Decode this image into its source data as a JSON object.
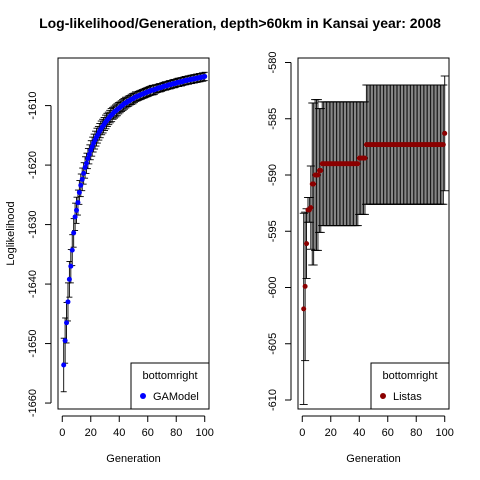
{
  "title": "Log-likelihood/Generation, depth>60km in Kansai year: 2008",
  "chart_data": [
    {
      "type": "scatter",
      "xlabel": "Generation",
      "ylabel": "Loglikelihood",
      "xlim": [
        -3,
        103
      ],
      "ylim": [
        -1661,
        -1602
      ],
      "xticks": [
        0,
        20,
        40,
        60,
        80,
        100
      ],
      "yticks": [
        -1660,
        -1650,
        -1640,
        -1630,
        -1620,
        -1610
      ],
      "ytick_labels": [
        "-1660",
        "-1650",
        "-1640",
        "-1630",
        "-1620",
        "-1610"
      ],
      "legend": {
        "title": "bottomright",
        "position": "bottom-right"
      },
      "series": [
        {
          "name": "GAModel",
          "color": "#0000ff",
          "error_bars": true,
          "x": [
            1,
            2,
            3,
            4,
            5,
            6,
            7,
            8,
            9,
            10,
            11,
            12,
            13,
            14,
            15,
            16,
            17,
            18,
            19,
            20,
            21,
            22,
            23,
            24,
            25,
            26,
            27,
            28,
            29,
            30,
            31,
            32,
            33,
            34,
            35,
            36,
            37,
            38,
            39,
            40,
            41,
            42,
            43,
            44,
            45,
            46,
            47,
            48,
            49,
            50,
            51,
            52,
            53,
            54,
            55,
            56,
            57,
            58,
            59,
            60,
            61,
            62,
            63,
            64,
            65,
            66,
            67,
            68,
            69,
            70,
            71,
            72,
            73,
            74,
            75,
            76,
            77,
            78,
            79,
            80,
            81,
            82,
            83,
            84,
            85,
            86,
            87,
            88,
            89,
            90,
            91,
            92,
            93,
            94,
            95,
            96,
            97,
            98,
            99,
            100
          ],
          "y": [
            -1653.6,
            -1649.5,
            -1646.5,
            -1643.0,
            -1639.2,
            -1637.0,
            -1634.3,
            -1631.4,
            -1628.7,
            -1627.6,
            -1626.3,
            -1624.6,
            -1623.4,
            -1622.4,
            -1621.4,
            -1620.4,
            -1619.7,
            -1618.9,
            -1618.2,
            -1617.5,
            -1616.9,
            -1616.3,
            -1615.8,
            -1615.3,
            -1614.9,
            -1614.4,
            -1614.0,
            -1613.6,
            -1613.3,
            -1612.9,
            -1612.6,
            -1612.3,
            -1612.0,
            -1611.7,
            -1611.5,
            -1611.2,
            -1611.0,
            -1610.8,
            -1610.6,
            -1610.4,
            -1610.2,
            -1610.0,
            -1609.8,
            -1609.6,
            -1609.5,
            -1609.3,
            -1609.2,
            -1609.0,
            -1608.9,
            -1608.8,
            -1608.6,
            -1608.5,
            -1608.4,
            -1608.3,
            -1608.2,
            -1608.1,
            -1608.0,
            -1607.9,
            -1607.8,
            -1607.7,
            -1607.6,
            -1607.5,
            -1607.4,
            -1607.4,
            -1607.3,
            -1607.2,
            -1607.1,
            -1607.0,
            -1607.0,
            -1606.9,
            -1606.8,
            -1606.7,
            -1606.7,
            -1606.6,
            -1606.5,
            -1606.5,
            -1606.4,
            -1606.3,
            -1606.3,
            -1606.2,
            -1606.1,
            -1606.1,
            -1606.0,
            -1606.0,
            -1605.9,
            -1605.8,
            -1605.8,
            -1605.7,
            -1605.7,
            -1605.6,
            -1605.6,
            -1605.5,
            -1605.5,
            -1605.4,
            -1605.4,
            -1605.3,
            -1605.3,
            -1605.2,
            -1605.2,
            -1605.1
          ],
          "err": [
            4.5,
            3.8,
            3.4,
            3.2,
            3.0,
            2.8,
            2.6,
            2.4,
            2.3,
            2.2,
            2.1,
            2.0,
            1.9,
            1.9,
            1.8,
            1.8,
            1.7,
            1.7,
            1.6,
            1.6,
            1.6,
            1.5,
            1.5,
            1.5,
            1.4,
            1.4,
            1.4,
            1.3,
            1.3,
            1.3,
            1.3,
            1.2,
            1.2,
            1.2,
            1.2,
            1.1,
            1.1,
            1.1,
            1.1,
            1.0,
            1.0,
            1.0,
            1.0,
            1.0,
            0.9,
            0.9,
            0.9,
            0.9,
            0.9,
            0.9,
            0.9,
            0.8,
            0.8,
            0.8,
            0.8,
            0.8,
            0.8,
            0.8,
            0.8,
            0.8,
            0.8,
            0.8,
            0.8,
            0.8,
            0.8,
            0.7,
            0.7,
            0.7,
            0.7,
            0.7,
            0.7,
            0.7,
            0.7,
            0.7,
            0.7,
            0.7,
            0.7,
            0.7,
            0.7,
            0.7,
            0.7,
            0.7,
            0.7,
            0.7,
            0.7,
            0.7,
            0.7,
            0.7,
            0.7,
            0.7,
            0.7,
            0.7,
            0.7,
            0.7,
            0.7,
            0.7,
            0.7,
            0.7,
            0.7,
            0.7
          ]
        }
      ]
    },
    {
      "type": "scatter",
      "xlabel": "Generation",
      "ylabel": "",
      "xlim": [
        -3,
        103
      ],
      "ylim": [
        -610.8,
        -579.6
      ],
      "xticks": [
        0,
        20,
        40,
        60,
        80,
        100
      ],
      "yticks": [
        -610,
        -605,
        -600,
        -595,
        -590,
        -585,
        -580
      ],
      "ytick_labels": [
        "-610",
        "-605",
        "-600",
        "-595",
        "-590",
        "-585",
        "-580"
      ],
      "legend": {
        "title": "bottomright",
        "position": "bottom-right"
      },
      "series": [
        {
          "name": "Listas",
          "color": "#8b0000",
          "error_bars": true,
          "x": [
            1,
            2,
            3,
            4,
            5,
            6,
            7,
            8,
            9,
            10,
            11,
            12,
            13,
            14,
            15,
            16,
            17,
            18,
            19,
            20,
            21,
            22,
            23,
            24,
            25,
            26,
            27,
            28,
            29,
            30,
            31,
            32,
            33,
            34,
            35,
            36,
            37,
            38,
            39,
            40,
            41,
            42,
            43,
            44,
            45,
            46,
            47,
            48,
            49,
            50,
            51,
            52,
            53,
            54,
            55,
            56,
            57,
            58,
            59,
            60,
            61,
            62,
            63,
            64,
            65,
            66,
            67,
            68,
            69,
            70,
            71,
            72,
            73,
            74,
            75,
            76,
            77,
            78,
            79,
            80,
            81,
            82,
            83,
            84,
            85,
            86,
            87,
            88,
            89,
            90,
            91,
            92,
            93,
            94,
            95,
            96,
            97,
            98,
            99,
            100
          ],
          "y": [
            -601.9,
            -599.9,
            -596.1,
            -593.1,
            -593.1,
            -592.9,
            -590.8,
            -590.8,
            -590.0,
            -590.0,
            -590.0,
            -589.6,
            -589.6,
            -589.0,
            -589.0,
            -589.0,
            -589.0,
            -589.0,
            -589.0,
            -589.0,
            -589.0,
            -589.0,
            -589.0,
            -589.0,
            -589.0,
            -589.0,
            -589.0,
            -589.0,
            -589.0,
            -589.0,
            -589.0,
            -589.0,
            -589.0,
            -589.0,
            -589.0,
            -589.0,
            -589.0,
            -589.0,
            -589.0,
            -588.5,
            -588.5,
            -588.5,
            -588.5,
            -588.5,
            -587.3,
            -587.3,
            -587.3,
            -587.3,
            -587.3,
            -587.3,
            -587.3,
            -587.3,
            -587.3,
            -587.3,
            -587.3,
            -587.3,
            -587.3,
            -587.3,
            -587.3,
            -587.3,
            -587.3,
            -587.3,
            -587.3,
            -587.3,
            -587.3,
            -587.3,
            -587.3,
            -587.3,
            -587.3,
            -587.3,
            -587.3,
            -587.3,
            -587.3,
            -587.3,
            -587.3,
            -587.3,
            -587.3,
            -587.3,
            -587.3,
            -587.3,
            -587.3,
            -587.3,
            -587.3,
            -587.3,
            -587.3,
            -587.3,
            -587.3,
            -587.3,
            -587.3,
            -587.3,
            -587.3,
            -587.3,
            -587.3,
            -587.3,
            -587.3,
            -587.3,
            -587.3,
            -587.3,
            -587.3,
            -586.3
          ],
          "err": [
            8.5,
            6.6,
            3.1,
            1.1,
            1.1,
            3.7,
            7.2,
            7.2,
            6.7,
            6.7,
            6.7,
            5.5,
            5.5,
            5.5,
            5.5,
            5.5,
            5.5,
            5.5,
            5.5,
            5.5,
            5.5,
            5.5,
            5.5,
            5.5,
            5.5,
            5.5,
            5.5,
            5.5,
            5.5,
            5.5,
            5.5,
            5.5,
            5.5,
            5.5,
            5.5,
            5.5,
            5.5,
            5.5,
            5.5,
            5.0,
            5.0,
            5.0,
            5.0,
            5.0,
            5.3,
            5.3,
            5.3,
            5.3,
            5.3,
            5.3,
            5.3,
            5.3,
            5.3,
            5.3,
            5.3,
            5.3,
            5.3,
            5.3,
            5.3,
            5.3,
            5.3,
            5.3,
            5.3,
            5.3,
            5.3,
            5.3,
            5.3,
            5.3,
            5.3,
            5.3,
            5.3,
            5.3,
            5.3,
            5.3,
            5.3,
            5.3,
            5.3,
            5.3,
            5.3,
            5.3,
            5.3,
            5.3,
            5.3,
            5.3,
            5.3,
            5.3,
            5.3,
            5.3,
            5.3,
            5.3,
            5.3,
            5.3,
            5.3,
            5.3,
            5.3,
            5.3,
            5.3,
            5.3,
            5.3,
            5.1
          ]
        }
      ]
    }
  ]
}
